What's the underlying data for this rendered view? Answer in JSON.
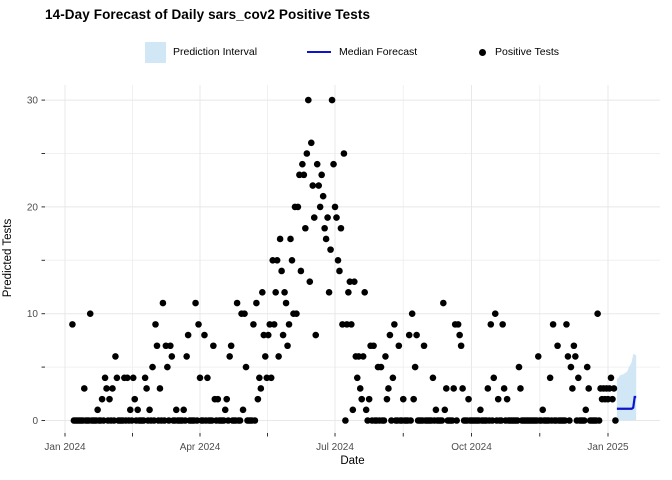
{
  "title": "14-Day Forecast of Daily sars_cov2 Positive Tests",
  "legend": {
    "prediction_interval_label": "Prediction Interval",
    "median_forecast_label": "Median Forecast",
    "positive_tests_label": "Positive Tests"
  },
  "colors": {
    "ribbon": "#d2e7f5",
    "median_line": "#0d14cc",
    "points": "#000000",
    "grid_major": "#e8e8e8",
    "grid_minor": "#f0f0f0",
    "tick": "#333333",
    "tick_label": "#4d4d4d",
    "background": "#ffffff"
  },
  "chart_data": {
    "type": "scatter",
    "title": "14-Day Forecast of Daily sars_cov2 Positive Tests",
    "xlabel": "Date",
    "ylabel": "Predicted Tests",
    "ylim": [
      0,
      30
    ],
    "y_major_ticks": [
      0,
      10,
      20,
      30
    ],
    "y_minor_ticks": [
      5,
      15,
      25
    ],
    "x_major_ticks": [
      {
        "day": 0,
        "label": "Jan 2024"
      },
      {
        "day": 91,
        "label": "Apr 2024"
      },
      {
        "day": 182,
        "label": "Jul 2024"
      },
      {
        "day": 274,
        "label": "Oct 2024"
      },
      {
        "day": 366,
        "label": "Jan 2025"
      }
    ],
    "x_minor_tick_days": [
      45.5,
      136.5,
      228,
      320
    ],
    "x_axis_start_date": "2024-01-01",
    "grid": true,
    "legend_position": "top",
    "observed": {
      "name": "Positive Tests",
      "start_day": 5,
      "values": [
        9,
        0,
        0,
        0,
        0,
        0,
        0,
        0,
        3,
        0,
        0,
        0,
        10,
        0,
        0,
        0,
        0,
        1,
        0,
        0,
        2,
        0,
        4,
        3,
        0,
        2,
        0,
        3,
        0,
        6,
        4,
        0,
        0,
        0,
        0,
        4,
        0,
        4,
        0,
        1,
        0,
        4,
        2,
        0,
        1,
        0,
        0,
        0,
        0,
        4,
        3,
        0,
        1,
        0,
        5,
        0,
        9,
        7,
        0,
        3,
        0,
        11,
        0,
        7,
        5,
        0,
        7,
        6,
        0,
        0,
        1,
        0,
        0,
        0,
        0,
        1,
        0,
        6,
        8,
        0,
        0,
        0,
        0,
        11,
        0,
        9,
        4,
        0,
        0,
        8,
        0,
        4,
        0,
        0,
        0,
        7,
        2,
        0,
        2,
        0,
        0,
        0,
        0,
        1,
        2,
        0,
        6,
        7,
        0,
        0,
        0,
        11,
        0,
        0,
        10,
        1,
        10,
        5,
        0,
        0,
        0,
        0,
        9,
        0,
        11,
        2,
        4,
        3,
        12,
        8,
        6,
        4,
        8,
        9,
        4,
        15,
        9,
        12,
        15,
        6,
        17,
        14,
        8,
        12,
        11,
        7,
        9,
        17,
        15,
        10,
        20,
        10,
        20,
        23,
        14,
        24,
        23,
        18,
        25,
        30,
        13,
        26,
        22,
        19,
        8,
        24,
        22,
        20,
        23,
        21,
        18,
        17,
        19,
        12,
        16,
        30,
        24,
        20,
        19,
        15,
        14,
        18,
        9,
        25,
        0,
        9,
        12,
        13,
        9,
        1,
        13,
        6,
        4,
        6,
        3,
        2,
        6,
        12,
        1,
        0,
        2,
        7,
        0,
        7,
        0,
        0,
        5,
        0,
        5,
        0,
        0,
        6,
        2,
        3,
        8,
        0,
        4,
        9,
        0,
        0,
        7,
        0,
        0,
        2,
        0,
        0,
        0,
        8,
        0,
        10,
        2,
        5,
        8,
        0,
        0,
        0,
        0,
        7,
        0,
        0,
        0,
        0,
        0,
        4,
        0,
        1,
        0,
        0,
        0,
        0,
        11,
        1,
        3,
        0,
        0,
        0,
        0,
        3,
        9,
        0,
        9,
        8,
        7,
        3,
        0,
        0,
        0,
        2,
        0,
        0,
        0,
        0,
        0,
        0,
        0,
        1,
        0,
        0,
        0,
        0,
        3,
        0,
        9,
        0,
        4,
        10,
        0,
        2,
        0,
        0,
        9,
        3,
        0,
        2,
        0,
        0,
        0,
        0,
        0,
        0,
        0,
        5,
        3,
        0,
        0,
        0,
        0,
        0,
        0,
        0,
        0,
        0,
        0,
        0,
        6,
        0,
        0,
        1,
        0,
        0,
        0,
        0,
        4,
        0,
        9,
        0,
        0,
        7,
        0,
        0,
        0,
        0,
        0,
        9,
        6,
        0,
        5,
        3,
        7,
        6,
        0,
        4,
        0,
        0,
        0,
        0,
        1,
        5,
        3,
        0,
        0,
        0,
        0,
        0,
        10,
        0,
        3,
        2,
        3,
        2,
        3,
        2,
        3,
        4,
        2,
        3,
        0
      ]
    },
    "forecast": {
      "name": "Median Forecast",
      "interval_name": "Prediction Interval",
      "start_day": 372,
      "median": [
        1.1,
        1.1,
        1.1,
        1.1,
        1.1,
        1.1,
        1.1,
        1.1,
        1.1,
        1.1,
        1.1,
        1.2,
        2.2,
        2.2
      ],
      "upper": [
        3.9,
        4.0,
        4.2,
        4.3,
        4.3,
        4.4,
        4.5,
        4.6,
        5.0,
        5.2,
        5.5,
        6.2,
        6.2,
        6.1
      ],
      "lower": [
        0,
        0,
        0,
        0,
        0,
        0,
        0,
        0,
        0,
        0,
        0,
        0,
        0,
        0
      ]
    }
  }
}
